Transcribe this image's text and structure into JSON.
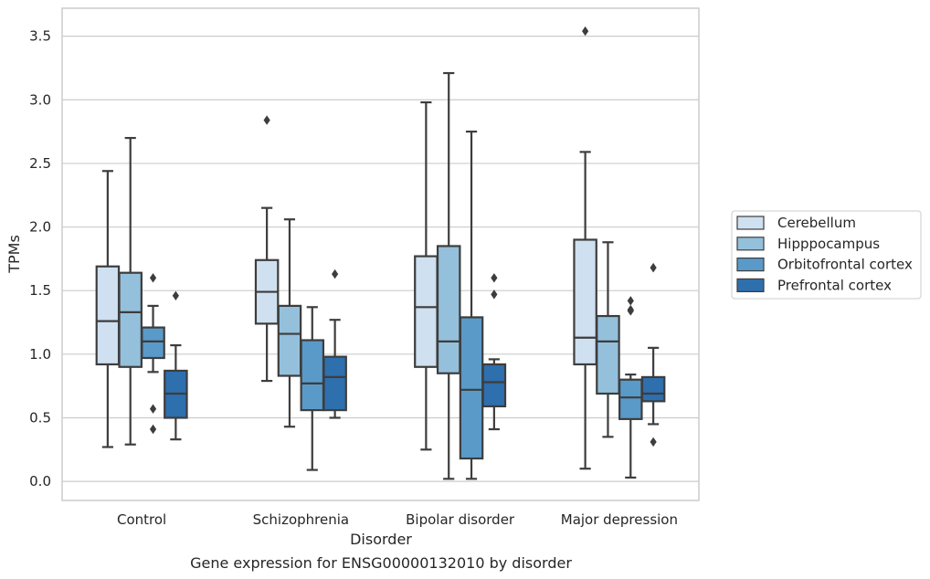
{
  "chart_data": {
    "type": "boxplot",
    "title": "",
    "caption": "Gene expression for ENSG00000132010 by disorder",
    "xlabel": "Disorder",
    "ylabel": "TPMs",
    "ylim": [
      -0.15,
      3.72
    ],
    "yticks": [
      "0.0",
      "0.5",
      "1.0",
      "1.5",
      "2.0",
      "2.5",
      "3.0",
      "3.5"
    ],
    "ytick_values": [
      0.0,
      0.5,
      1.0,
      1.5,
      2.0,
      2.5,
      3.0,
      3.5
    ],
    "grid": "horizontal",
    "legend_position": "right",
    "categories": [
      "Control",
      "Schizophrenia",
      "Bipolar disorder",
      "Major depression"
    ],
    "series": [
      {
        "name": "Cerebellum",
        "color": "#cfe0f0",
        "boxes": [
          {
            "whislo": 0.27,
            "q1": 0.92,
            "med": 1.26,
            "q3": 1.69,
            "whishi": 2.44,
            "fliers": []
          },
          {
            "whislo": 0.79,
            "q1": 1.24,
            "med": 1.49,
            "q3": 1.74,
            "whishi": 2.15,
            "fliers": [
              2.84
            ]
          },
          {
            "whislo": 0.25,
            "q1": 0.9,
            "med": 1.37,
            "q3": 1.77,
            "whishi": 2.98,
            "fliers": []
          },
          {
            "whislo": 0.1,
            "q1": 0.92,
            "med": 1.13,
            "q3": 1.9,
            "whishi": 2.59,
            "fliers": [
              3.54
            ]
          }
        ]
      },
      {
        "name": "Hipppocampus",
        "color": "#94c0dc",
        "boxes": [
          {
            "whislo": 0.29,
            "q1": 0.9,
            "med": 1.33,
            "q3": 1.64,
            "whishi": 2.7,
            "fliers": []
          },
          {
            "whislo": 0.43,
            "q1": 0.83,
            "med": 1.16,
            "q3": 1.38,
            "whishi": 2.06,
            "fliers": []
          },
          {
            "whislo": 0.02,
            "q1": 0.85,
            "med": 1.1,
            "q3": 1.85,
            "whishi": 3.21,
            "fliers": []
          },
          {
            "whislo": 0.35,
            "q1": 0.69,
            "med": 1.1,
            "q3": 1.3,
            "whishi": 1.88,
            "fliers": []
          }
        ]
      },
      {
        "name": "Orbitofrontal cortex",
        "color": "#5a9ac8",
        "boxes": [
          {
            "whislo": 0.86,
            "q1": 0.97,
            "med": 1.1,
            "q3": 1.21,
            "whishi": 1.38,
            "fliers": [
              1.6,
              0.57,
              0.41
            ]
          },
          {
            "whislo": 0.09,
            "q1": 0.56,
            "med": 0.77,
            "q3": 1.11,
            "whishi": 1.37,
            "fliers": []
          },
          {
            "whislo": 0.02,
            "q1": 0.18,
            "med": 0.72,
            "q3": 1.29,
            "whishi": 2.75,
            "fliers": []
          },
          {
            "whislo": 0.03,
            "q1": 0.49,
            "med": 0.66,
            "q3": 0.8,
            "whishi": 0.84,
            "fliers": [
              1.42,
              1.35,
              1.34
            ]
          }
        ]
      },
      {
        "name": "Prefrontal cortex",
        "color": "#2e6fae",
        "boxes": [
          {
            "whislo": 0.33,
            "q1": 0.5,
            "med": 0.69,
            "q3": 0.87,
            "whishi": 1.07,
            "fliers": [
              1.46
            ]
          },
          {
            "whislo": 0.5,
            "q1": 0.56,
            "med": 0.82,
            "q3": 0.98,
            "whishi": 1.27,
            "fliers": [
              1.63
            ]
          },
          {
            "whislo": 0.41,
            "q1": 0.59,
            "med": 0.78,
            "q3": 0.92,
            "whishi": 0.96,
            "fliers": [
              1.6,
              1.47
            ]
          },
          {
            "whislo": 0.45,
            "q1": 0.63,
            "med": 0.69,
            "q3": 0.82,
            "whishi": 1.05,
            "fliers": [
              1.68,
              0.31
            ]
          }
        ]
      }
    ]
  }
}
